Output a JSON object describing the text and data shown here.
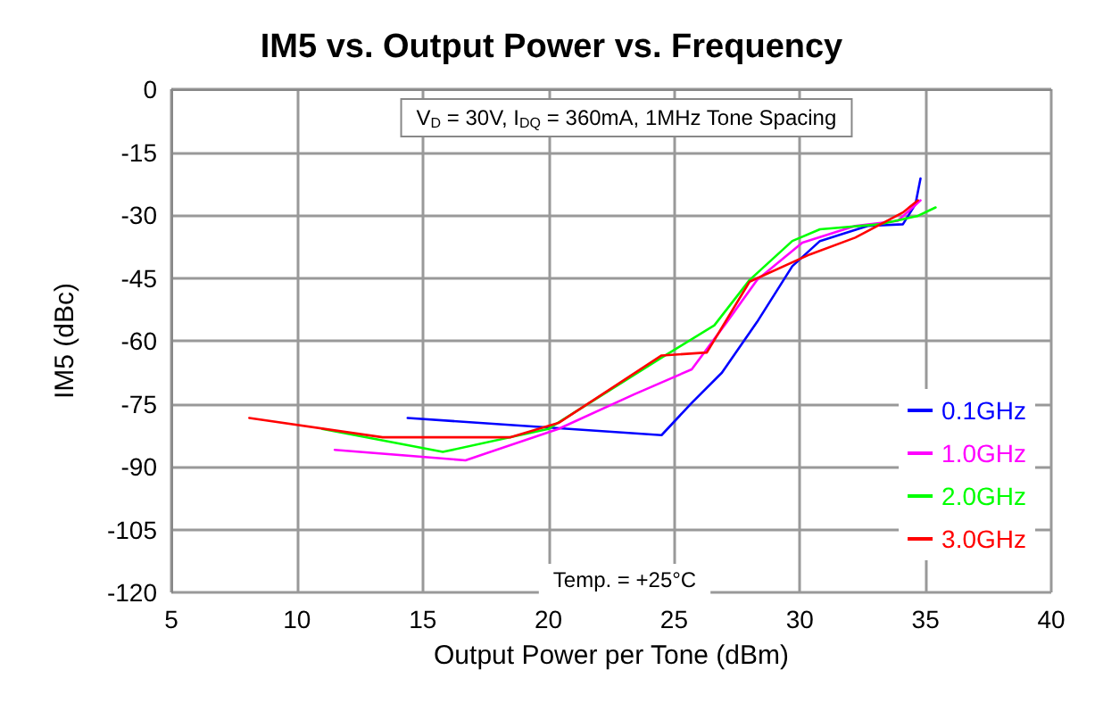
{
  "chart_data": {
    "type": "line",
    "title": "IM5 vs. Output Power vs. Frequency",
    "xlabel": "Output Power per Tone (dBm)",
    "ylabel": "IM5 (dBc)",
    "annotations": [
      "V$_{D}$ = 30V, I$_{DQ}$ = 360mA, 1MHz Tone Spacing",
      "Temp. = +25°C"
    ],
    "series": [
      {
        "name": "0.1GHz",
        "color": "#0000ff",
        "x": [
          14.4,
          24.5,
          25.7,
          26.9,
          28.3,
          29.7,
          30.8,
          32.7,
          34.1,
          34.6,
          34.8
        ],
        "values": [
          -78.4,
          -82.5,
          -74.8,
          -67.6,
          -55.5,
          -42.2,
          -36.2,
          -32.6,
          -32.2,
          -27.4,
          -21.3
        ]
      },
      {
        "name": "1.0GHz",
        "color": "#ff00ff",
        "x": [
          11.5,
          16.7,
          20.4,
          23.4,
          25.7,
          27.1,
          28.3,
          30.1,
          32.2,
          33.9,
          34.8
        ],
        "values": [
          -86,
          -88.5,
          -81,
          -72.8,
          -66.8,
          -55.5,
          -45.5,
          -36.6,
          -32.6,
          -31.4,
          -26.5
        ]
      },
      {
        "name": "2.0GHz",
        "color": "#00ff00",
        "x": [
          11,
          15.8,
          20,
          24.5,
          26.6,
          28,
          29.7,
          30.8,
          33.2,
          34.7,
          35.4
        ],
        "values": [
          -81,
          -86.5,
          -81,
          -64,
          -56.3,
          -45.5,
          -36.2,
          -33.4,
          -32.2,
          -30.2,
          -28.2
        ]
      },
      {
        "name": "3.0GHz",
        "color": "#ff0000",
        "x": [
          8.1,
          13.4,
          18.5,
          20.4,
          24.5,
          26.3,
          28,
          30.4,
          32.2,
          34.1,
          34.7
        ],
        "values": [
          -78.4,
          -83,
          -83,
          -79.6,
          -63.5,
          -62.8,
          -45.9,
          -39.4,
          -35.4,
          -29.4,
          -26.5
        ]
      }
    ],
    "xlim": [
      5,
      40
    ],
    "xticks": [
      5,
      10,
      15,
      20,
      25,
      30,
      35,
      40
    ],
    "ylim": [
      -120,
      0
    ],
    "yticks": [
      -120,
      -105,
      -90,
      -75,
      -60,
      -45,
      -30,
      -15,
      0
    ],
    "grid": true,
    "legend": "right",
    "marker": "none",
    "line_style": "solid"
  }
}
